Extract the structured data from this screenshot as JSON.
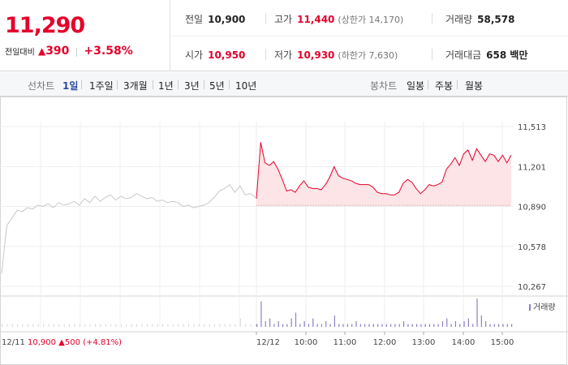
{
  "quote": {
    "price": "11,290",
    "change_label": "전일대비",
    "change_symbol": "▲",
    "change_amount": "390",
    "change_pct": "+3.58%",
    "prev_close_label": "전일",
    "prev_close": "10,900",
    "open_label": "시가",
    "open": "10,950",
    "high_label": "고가",
    "high": "11,440",
    "upper_limit": "(상한가 14,170)",
    "low_label": "저가",
    "low": "10,930",
    "lower_limit": "(하한가 7,630)",
    "volume_label": "거래량",
    "volume": "58,578",
    "amount_label": "거래대금",
    "amount": "658 백만"
  },
  "tabs": {
    "line_label": "선차트",
    "line": [
      "1일",
      "1주일",
      "3개월",
      "1년",
      "3년",
      "5년",
      "10년"
    ],
    "active": "1일",
    "candle_label": "봉차트",
    "candle": [
      "일봉",
      "주봉",
      "월봉"
    ]
  },
  "colors": {
    "up": "#e4002b",
    "active_tab": "#2b4aa8",
    "volume": "#8f7fc6",
    "prev_line": "#c8c8c8"
  },
  "chart_data": {
    "type": "line",
    "y_ticks": [
      "11,513",
      "11,201",
      "10,890",
      "10,578",
      "10,267"
    ],
    "ylim": [
      10267,
      11513
    ],
    "x_ticks": [
      "12/12",
      "10:00",
      "11:00",
      "12:00",
      "13:00",
      "14:00",
      "15:00"
    ],
    "prev_day_note": {
      "date": "12/11",
      "price": "10,900",
      "symbol": "▲",
      "change": "500",
      "pct": "(+4.81%)"
    },
    "baseline": 10900,
    "legend_volume": "거래량",
    "prev_day_series": [
      10370,
      10740,
      10800,
      10860,
      10850,
      10880,
      10870,
      10900,
      10890,
      10910,
      10880,
      10920,
      10900,
      10910,
      10930,
      10900,
      10950,
      10920,
      10970,
      10930,
      10960,
      10980,
      10940,
      10970,
      10950,
      10960,
      10990,
      10970,
      10950,
      10960,
      10930,
      10940,
      10920,
      10930,
      10920,
      10890,
      10900,
      10880,
      10890,
      10900,
      10920,
      10960,
      11010,
      11030,
      11060,
      11000,
      11050,
      10980,
      10990,
      10960
    ],
    "today_series": [
      10950,
      11390,
      11230,
      11210,
      11240,
      11180,
      11100,
      11010,
      11020,
      11000,
      11050,
      11090,
      11040,
      11030,
      11030,
      11020,
      11060,
      11120,
      11200,
      11130,
      11110,
      11100,
      11090,
      11070,
      11060,
      11060,
      11060,
      11040,
      11000,
      10990,
      10990,
      10980,
      10980,
      11000,
      11070,
      11100,
      11080,
      11030,
      10990,
      11020,
      11060,
      11050,
      11060,
      11080,
      11180,
      11220,
      11270,
      11210,
      11300,
      11330,
      11250,
      11340,
      11290,
      11240,
      11300,
      11290,
      11240,
      11290,
      11230,
      11290
    ],
    "volume_today": [
      1,
      9,
      2,
      3,
      1,
      2,
      1,
      1,
      3,
      5,
      1,
      2,
      1,
      3,
      1,
      1,
      2,
      1,
      4,
      1,
      1,
      1,
      1,
      2,
      1,
      1,
      1,
      1,
      1,
      1,
      1,
      1,
      1,
      1,
      2,
      1,
      1,
      1,
      1,
      1,
      1,
      1,
      1,
      2,
      3,
      1,
      2,
      1,
      2,
      3,
      1,
      10,
      4,
      2,
      1,
      1,
      1,
      1,
      1,
      1
    ],
    "volume_prev": [
      1,
      1,
      1,
      1,
      1,
      1,
      1,
      1,
      1,
      1,
      1,
      1,
      1,
      1,
      1,
      1,
      1,
      1,
      1,
      1,
      1,
      1,
      1,
      1,
      1,
      1,
      1,
      1,
      1,
      1,
      1,
      1,
      1,
      1,
      1,
      1,
      1,
      1,
      1,
      1,
      1,
      1,
      1,
      1,
      1,
      1,
      3,
      1,
      1,
      1
    ]
  }
}
